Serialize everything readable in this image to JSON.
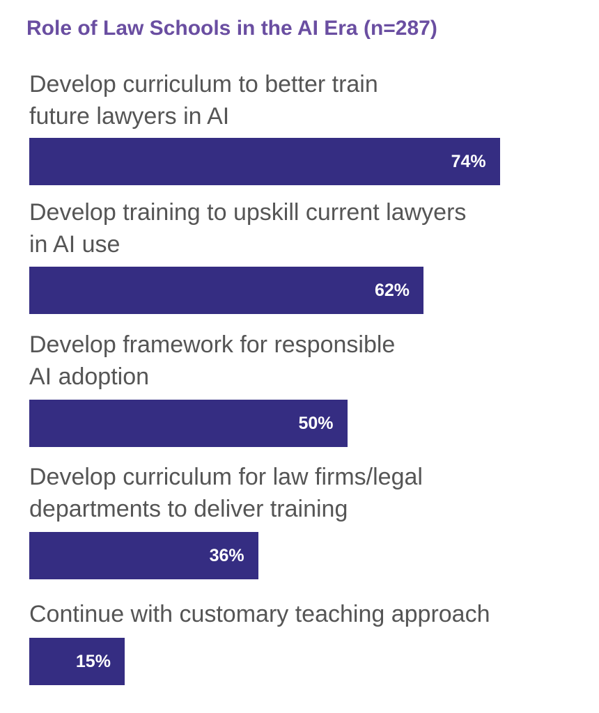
{
  "chart_data": {
    "type": "bar",
    "orientation": "horizontal",
    "title": "Role of Law Schools in the AI Era (n=287)",
    "categories": [
      "Develop curriculum to better train\nfuture lawyers in AI",
      "Develop training to upskill current lawyers\nin AI use",
      "Develop framework for responsible\nAI adoption",
      "Develop curriculum for law firms/legal\ndepartments to deliver training",
      "Continue with customary teaching approach"
    ],
    "values": [
      74,
      62,
      50,
      36,
      15
    ],
    "value_labels": [
      "74%",
      "62%",
      "50%",
      "36%",
      "15%"
    ],
    "color": "#352d82"
  }
}
